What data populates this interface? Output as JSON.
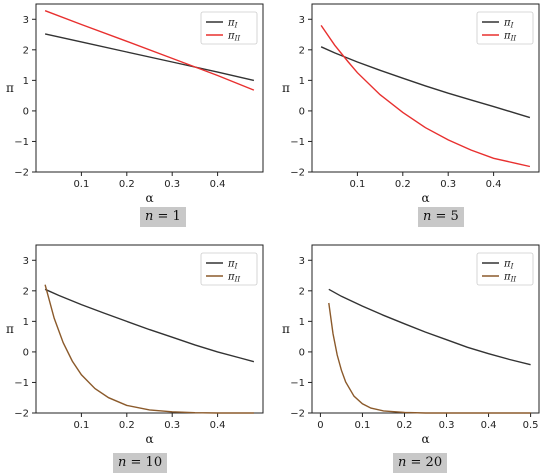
{
  "chart_data": [
    {
      "type": "line",
      "caption": {
        "var": "n",
        "eq": " = ",
        "val": "1"
      },
      "xlabel": "α",
      "ylabel": "π",
      "xlim": [
        0,
        0.5
      ],
      "ylim": [
        -2,
        3.5
      ],
      "xticks": [
        0.1,
        0.2,
        0.3,
        0.4
      ],
      "yticks": [
        -2,
        -1,
        0,
        1,
        2,
        3
      ],
      "legend": "top-right",
      "series": [
        {
          "name": "π",
          "sub": "I",
          "color": "#333333",
          "x": [
            0.02,
            0.1,
            0.2,
            0.3,
            0.4,
            0.48
          ],
          "y": [
            2.52,
            2.26,
            1.93,
            1.6,
            1.27,
            1.0
          ]
        },
        {
          "name": "π",
          "sub": "II",
          "color": "#e8302f",
          "x": [
            0.02,
            0.1,
            0.2,
            0.3,
            0.4,
            0.48
          ],
          "y": [
            3.28,
            2.83,
            2.28,
            1.72,
            1.16,
            0.68
          ]
        }
      ]
    },
    {
      "type": "line",
      "caption": {
        "var": "n",
        "eq": " = ",
        "val": "5"
      },
      "xlabel": "α",
      "ylabel": "π",
      "xlim": [
        0,
        0.5
      ],
      "ylim": [
        -2,
        3.5
      ],
      "xticks": [
        0.1,
        0.2,
        0.3,
        0.4
      ],
      "yticks": [
        -2,
        -1,
        0,
        1,
        2,
        3
      ],
      "legend": "top-right",
      "series": [
        {
          "name": "π",
          "sub": "I",
          "color": "#333333",
          "x": [
            0.02,
            0.05,
            0.1,
            0.15,
            0.2,
            0.25,
            0.3,
            0.35,
            0.4,
            0.45,
            0.48
          ],
          "y": [
            2.1,
            1.9,
            1.6,
            1.33,
            1.07,
            0.82,
            0.58,
            0.36,
            0.14,
            -0.08,
            -0.22
          ]
        },
        {
          "name": "π",
          "sub": "II",
          "color": "#e8302f",
          "x": [
            0.02,
            0.05,
            0.08,
            0.1,
            0.15,
            0.2,
            0.25,
            0.3,
            0.35,
            0.4,
            0.45,
            0.48
          ],
          "y": [
            2.8,
            2.15,
            1.6,
            1.25,
            0.53,
            -0.05,
            -0.55,
            -0.95,
            -1.28,
            -1.55,
            -1.72,
            -1.82
          ]
        }
      ]
    },
    {
      "type": "line",
      "caption": {
        "var": "n",
        "eq": " = ",
        "val": "10"
      },
      "xlabel": "α",
      "ylabel": "π",
      "xlim": [
        0,
        0.5
      ],
      "ylim": [
        -2,
        3.5
      ],
      "xticks": [
        0.1,
        0.2,
        0.3,
        0.4
      ],
      "yticks": [
        -2,
        -1,
        0,
        1,
        2,
        3
      ],
      "legend": "top-right",
      "series": [
        {
          "name": "π",
          "sub": "I",
          "color": "#333333",
          "x": [
            0.02,
            0.05,
            0.1,
            0.15,
            0.2,
            0.25,
            0.3,
            0.35,
            0.4,
            0.45,
            0.48
          ],
          "y": [
            2.05,
            1.85,
            1.55,
            1.27,
            1.0,
            0.73,
            0.48,
            0.23,
            0.0,
            -0.2,
            -0.32
          ]
        },
        {
          "name": "π",
          "sub": "II",
          "color": "#8b5a2b",
          "x": [
            0.02,
            0.04,
            0.06,
            0.08,
            0.1,
            0.13,
            0.16,
            0.2,
            0.25,
            0.3,
            0.35,
            0.4,
            0.48
          ],
          "y": [
            2.2,
            1.1,
            0.3,
            -0.3,
            -0.75,
            -1.2,
            -1.5,
            -1.75,
            -1.9,
            -1.96,
            -1.99,
            -2.0,
            -2.0
          ]
        }
      ]
    },
    {
      "type": "line",
      "caption": {
        "var": "n",
        "eq": " = ",
        "val": "20"
      },
      "xlabel": "α",
      "ylabel": "π",
      "xlim": [
        -0.02,
        0.52
      ],
      "ylim": [
        -2,
        3.5
      ],
      "xticks": [
        0.0,
        0.1,
        0.2,
        0.3,
        0.4,
        0.5
      ],
      "yticks": [
        -2,
        -1,
        0,
        1,
        2,
        3
      ],
      "legend": "top-right",
      "series": [
        {
          "name": "π",
          "sub": "I",
          "color": "#333333",
          "x": [
            0.02,
            0.05,
            0.1,
            0.15,
            0.2,
            0.25,
            0.3,
            0.35,
            0.4,
            0.45,
            0.5
          ],
          "y": [
            2.05,
            1.82,
            1.5,
            1.2,
            0.92,
            0.65,
            0.4,
            0.15,
            -0.06,
            -0.25,
            -0.42
          ]
        },
        {
          "name": "π",
          "sub": "II",
          "color": "#8b5a2b",
          "x": [
            0.02,
            0.03,
            0.04,
            0.05,
            0.06,
            0.08,
            0.1,
            0.12,
            0.15,
            0.2,
            0.25,
            0.3,
            0.4,
            0.5
          ],
          "y": [
            1.6,
            0.6,
            -0.1,
            -0.6,
            -0.98,
            -1.45,
            -1.7,
            -1.84,
            -1.93,
            -1.98,
            -2.0,
            -2.0,
            -2.0,
            -2.0
          ]
        }
      ]
    }
  ]
}
